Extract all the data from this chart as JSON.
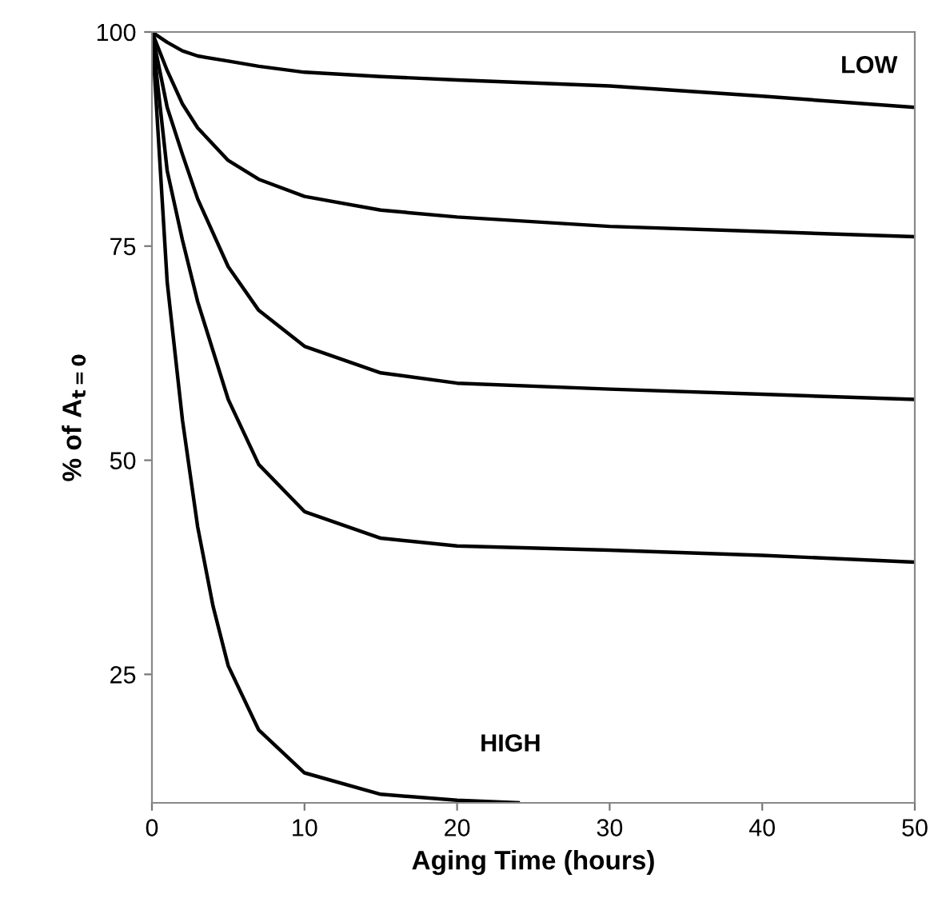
{
  "chart_data": {
    "type": "line",
    "xlabel": "Aging Time (hours)",
    "ylabel": "% of A$_{t=0}$",
    "xlim": [
      0,
      50
    ],
    "xticks": [
      0,
      10,
      20,
      30,
      40,
      50
    ],
    "ylim": [
      10,
      100
    ],
    "yticks": [
      25,
      50,
      75,
      100
    ],
    "grid": false,
    "legend": false,
    "marker": "none",
    "line_style": "solid",
    "series": [
      {
        "color": "#000000",
        "x": [
          0,
          1,
          2,
          3,
          5,
          7,
          10,
          15,
          20,
          30,
          40,
          50
        ],
        "values": [
          100,
          98.8,
          97.8,
          97.2,
          96.6,
          96.0,
          95.3,
          94.8,
          94.4,
          93.7,
          92.5,
          91.2
        ]
      },
      {
        "color": "#000000",
        "x": [
          0,
          1,
          2,
          3,
          5,
          7,
          10,
          15,
          20,
          30,
          40,
          50
        ],
        "values": [
          100,
          95.5,
          91.6,
          88.8,
          85,
          82.8,
          80.8,
          79.2,
          78.4,
          77.3,
          76.7,
          76.1
        ]
      },
      {
        "color": "#000000",
        "x": [
          0,
          1,
          2,
          3,
          5,
          7,
          10,
          15,
          20,
          30,
          40,
          50
        ],
        "values": [
          100,
          91.2,
          85.7,
          80.5,
          72.6,
          67.5,
          63.3,
          60.2,
          59,
          58.3,
          57.7,
          57.1
        ]
      },
      {
        "color": "#000000",
        "x": [
          0,
          1,
          2,
          3,
          5,
          7,
          10,
          15,
          20,
          30,
          40,
          50
        ],
        "values": [
          100,
          83.8,
          75.7,
          68.5,
          57.1,
          49.5,
          44,
          40.9,
          40,
          39.5,
          38.9,
          38.1
        ]
      },
      {
        "color": "#000000",
        "x": [
          0,
          1,
          2,
          3,
          4,
          5,
          7,
          10,
          15,
          20,
          24
        ],
        "values": [
          100,
          70.8,
          54.7,
          42.2,
          33,
          26,
          18.5,
          13.5,
          11,
          10.3,
          10
        ]
      }
    ],
    "annotations": [
      "LOW",
      "HIGH"
    ]
  }
}
